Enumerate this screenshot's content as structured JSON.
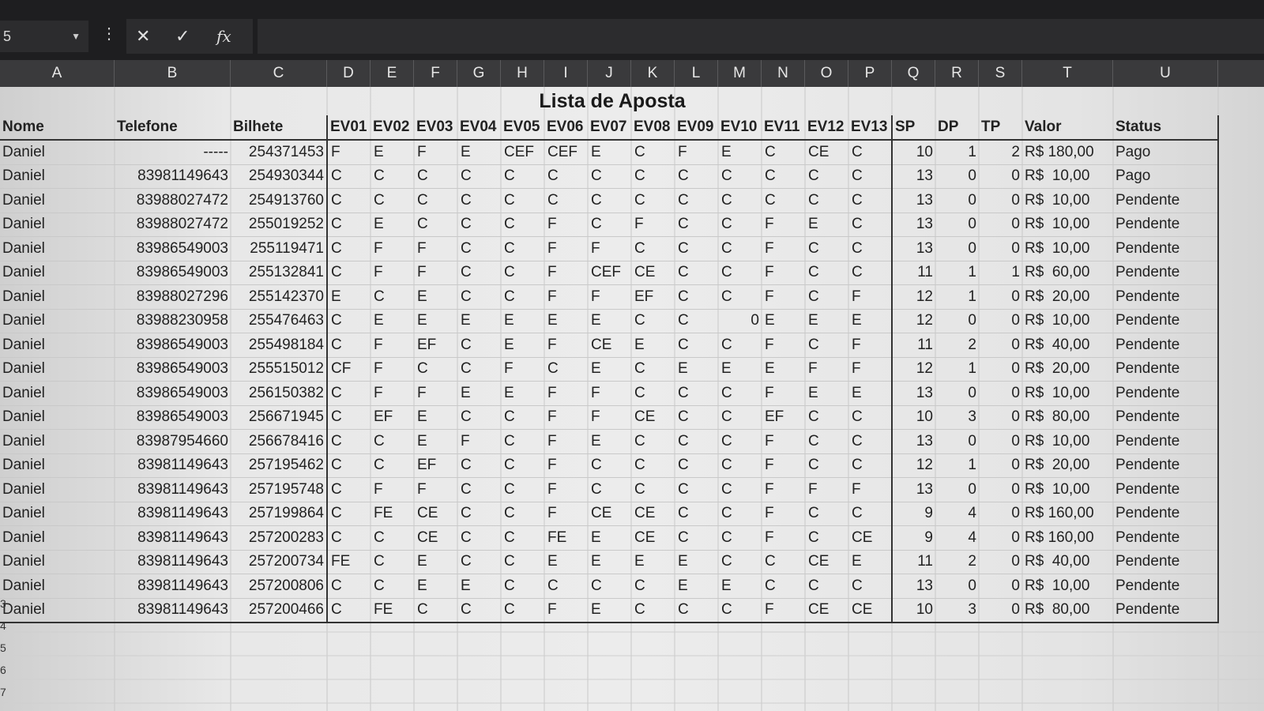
{
  "formula_bar": {
    "name_box": "5",
    "cancel_icon": "✕",
    "enter_icon": "✓",
    "function_icon": "fx"
  },
  "columns": [
    "A",
    "B",
    "C",
    "D",
    "E",
    "F",
    "G",
    "H",
    "I",
    "J",
    "K",
    "L",
    "M",
    "N",
    "O",
    "P",
    "Q",
    "R",
    "S",
    "T",
    "U"
  ],
  "sheet": {
    "title": "Lista de Aposta",
    "headers": [
      "Nome",
      "Telefone",
      "Bilhete",
      "EV01",
      "EV02",
      "EV03",
      "EV04",
      "EV05",
      "EV06",
      "EV07",
      "EV08",
      "EV09",
      "EV10",
      "EV11",
      "EV12",
      "EV13",
      "SP",
      "DP",
      "TP",
      "Valor",
      "Status"
    ],
    "rows": [
      [
        "Daniel",
        "-----",
        "254371453",
        "F",
        "E",
        "F",
        "E",
        "CEF",
        "CEF",
        "E",
        "C",
        "F",
        "E",
        "C",
        "CE",
        "C",
        "10",
        "1",
        "2",
        "R$ 180,00",
        "Pago"
      ],
      [
        "Daniel",
        "83981149643",
        "254930344",
        "C",
        "C",
        "C",
        "C",
        "C",
        "C",
        "C",
        "C",
        "C",
        "C",
        "C",
        "C",
        "C",
        "13",
        "0",
        "0",
        "R$  10,00",
        "Pago"
      ],
      [
        "Daniel",
        "83988027472",
        "254913760",
        "C",
        "C",
        "C",
        "C",
        "C",
        "C",
        "C",
        "C",
        "C",
        "C",
        "C",
        "C",
        "C",
        "13",
        "0",
        "0",
        "R$  10,00",
        "Pendente"
      ],
      [
        "Daniel",
        "83988027472",
        "255019252",
        "C",
        "E",
        "C",
        "C",
        "C",
        "F",
        "C",
        "F",
        "C",
        "C",
        "F",
        "E",
        "C",
        "13",
        "0",
        "0",
        "R$  10,00",
        "Pendente"
      ],
      [
        "Daniel",
        "83986549003",
        "255119471",
        "C",
        "F",
        "F",
        "C",
        "C",
        "F",
        "F",
        "C",
        "C",
        "C",
        "F",
        "C",
        "C",
        "13",
        "0",
        "0",
        "R$  10,00",
        "Pendente"
      ],
      [
        "Daniel",
        "83986549003",
        "255132841",
        "C",
        "F",
        "F",
        "C",
        "C",
        "F",
        "CEF",
        "CE",
        "C",
        "C",
        "F",
        "C",
        "C",
        "11",
        "1",
        "1",
        "R$  60,00",
        "Pendente"
      ],
      [
        "Daniel",
        "83988027296",
        "255142370",
        "E",
        "C",
        "E",
        "C",
        "C",
        "F",
        "F",
        "EF",
        "C",
        "C",
        "F",
        "C",
        "F",
        "12",
        "1",
        "0",
        "R$  20,00",
        "Pendente"
      ],
      [
        "Daniel",
        "83988230958",
        "255476463",
        "C",
        "E",
        "E",
        "E",
        "E",
        "E",
        "E",
        "C",
        "C",
        "0",
        "E",
        "E",
        "E",
        "12",
        "0",
        "0",
        "R$  10,00",
        "Pendente"
      ],
      [
        "Daniel",
        "83986549003",
        "255498184",
        "C",
        "F",
        "EF",
        "C",
        "E",
        "F",
        "CE",
        "E",
        "C",
        "C",
        "F",
        "C",
        "F",
        "11",
        "2",
        "0",
        "R$  40,00",
        "Pendente"
      ],
      [
        "Daniel",
        "83986549003",
        "255515012",
        "CF",
        "F",
        "C",
        "C",
        "F",
        "C",
        "E",
        "C",
        "E",
        "E",
        "E",
        "F",
        "F",
        "12",
        "1",
        "0",
        "R$  20,00",
        "Pendente"
      ],
      [
        "Daniel",
        "83986549003",
        "256150382",
        "C",
        "F",
        "F",
        "E",
        "E",
        "F",
        "F",
        "C",
        "C",
        "C",
        "F",
        "E",
        "E",
        "13",
        "0",
        "0",
        "R$  10,00",
        "Pendente"
      ],
      [
        "Daniel",
        "83986549003",
        "256671945",
        "C",
        "EF",
        "E",
        "C",
        "C",
        "F",
        "F",
        "CE",
        "C",
        "C",
        "EF",
        "C",
        "C",
        "10",
        "3",
        "0",
        "R$  80,00",
        "Pendente"
      ],
      [
        "Daniel",
        "83987954660",
        "256678416",
        "C",
        "C",
        "E",
        "F",
        "C",
        "F",
        "E",
        "C",
        "C",
        "C",
        "F",
        "C",
        "C",
        "13",
        "0",
        "0",
        "R$  10,00",
        "Pendente"
      ],
      [
        "Daniel",
        "83981149643",
        "257195462",
        "C",
        "C",
        "EF",
        "C",
        "C",
        "F",
        "C",
        "C",
        "C",
        "C",
        "F",
        "C",
        "C",
        "12",
        "1",
        "0",
        "R$  20,00",
        "Pendente"
      ],
      [
        "Daniel",
        "83981149643",
        "257195748",
        "C",
        "F",
        "F",
        "C",
        "C",
        "F",
        "C",
        "C",
        "C",
        "C",
        "F",
        "F",
        "F",
        "13",
        "0",
        "0",
        "R$  10,00",
        "Pendente"
      ],
      [
        "Daniel",
        "83981149643",
        "257199864",
        "C",
        "FE",
        "CE",
        "C",
        "C",
        "F",
        "CE",
        "CE",
        "C",
        "C",
        "F",
        "C",
        "C",
        "9",
        "4",
        "0",
        "R$ 160,00",
        "Pendente"
      ],
      [
        "Daniel",
        "83981149643",
        "257200283",
        "C",
        "C",
        "CE",
        "C",
        "C",
        "FE",
        "E",
        "CE",
        "C",
        "C",
        "F",
        "C",
        "CE",
        "9",
        "4",
        "0",
        "R$ 160,00",
        "Pendente"
      ],
      [
        "Daniel",
        "83981149643",
        "257200734",
        "FE",
        "C",
        "E",
        "C",
        "C",
        "E",
        "E",
        "E",
        "E",
        "C",
        "C",
        "CE",
        "E",
        "11",
        "2",
        "0",
        "R$  40,00",
        "Pendente"
      ],
      [
        "Daniel",
        "83981149643",
        "257200806",
        "C",
        "C",
        "E",
        "E",
        "C",
        "C",
        "C",
        "C",
        "E",
        "E",
        "C",
        "C",
        "C",
        "13",
        "0",
        "0",
        "R$  10,00",
        "Pendente"
      ],
      [
        "Daniel",
        "83981149643",
        "257200466",
        "C",
        "FE",
        "C",
        "C",
        "C",
        "F",
        "E",
        "C",
        "C",
        "C",
        "F",
        "CE",
        "CE",
        "10",
        "3",
        "0",
        "R$  80,00",
        "Pendente"
      ]
    ]
  },
  "row_numbers_visible": [
    "3",
    "4",
    "5",
    "6",
    "7"
  ]
}
